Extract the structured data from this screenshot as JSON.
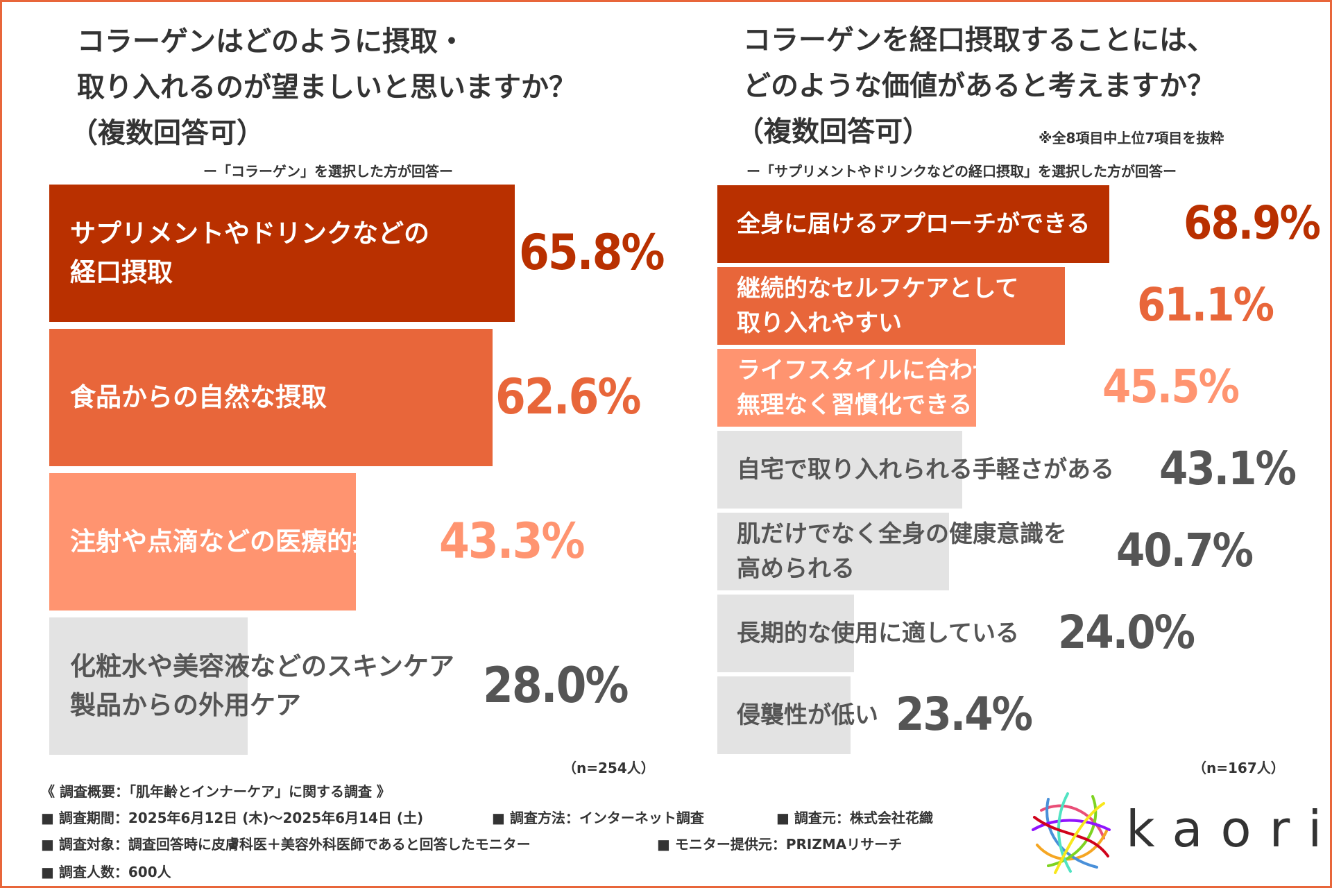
{
  "colors": {
    "dark": "#B93000",
    "mid": "#E8663A",
    "light": "#FF9470",
    "gray": "#E3E3E3",
    "gray_text": "#555555"
  },
  "left": {
    "title_lines": [
      "コラーゲンはどのように摂取・",
      "取り入れるのが望ましいと思いますか？",
      "（複数回答可）"
    ],
    "note": "ー「コラーゲン」を選択した方が回答ー",
    "n": "（n=254人）"
  },
  "right": {
    "title_lines": [
      "コラーゲンを経口摂取することには、",
      "どのような価値があると考えますか？",
      "（複数回答可）"
    ],
    "extract_note": "※全8項目中上位7項目を抜粋",
    "note": "ー「サプリメントやドリンクなどの経口摂取」を選択した方が回答ー",
    "n": "（n=167人）"
  },
  "chart_data": [
    {
      "type": "bar",
      "orientation": "horizontal",
      "title": "コラーゲンはどのように摂取・取り入れるのが望ましいと思いますか？（複数回答可）",
      "categories": [
        "サプリメントやドリンクなどの経口摂取",
        "食品からの自然な摂取",
        "注射や点滴などの医療的摂取",
        "化粧水や美容液などのスキンケア製品からの外用ケア"
      ],
      "label_lines": [
        [
          "サプリメントやドリンクなどの",
          "経口摂取"
        ],
        [
          "食品からの自然な摂取"
        ],
        [
          "注射や点滴などの医療的摂取"
        ],
        [
          "化粧水や美容液などのスキンケア",
          "製品からの外用ケア"
        ]
      ],
      "values": [
        65.8,
        62.6,
        43.3,
        28.0
      ],
      "value_labels": [
        "65.8%",
        "62.6%",
        "43.3%",
        "28.0%"
      ],
      "shades": [
        "dark",
        "mid",
        "light",
        "gray"
      ],
      "unit": "%",
      "xlim": [
        0,
        100
      ]
    },
    {
      "type": "bar",
      "orientation": "horizontal",
      "title": "コラーゲンを経口摂取することには、どのような価値があると考えますか？（複数回答可）",
      "categories": [
        "全身に届けるアプローチができる",
        "継続的なセルフケアとして取り入れやすい",
        "ライフスタイルに合わせて無理なく習慣化できる",
        "自宅で取り入れられる手軽さがある",
        "肌だけでなく全身の健康意識を高められる",
        "長期的な使用に適している",
        "侵襲性が低い"
      ],
      "label_lines": [
        [
          "全身に届けるアプローチができる"
        ],
        [
          "継続的なセルフケアとして",
          "取り入れやすい"
        ],
        [
          "ライフスタイルに合わせて",
          "無理なく習慣化できる"
        ],
        [
          "自宅で取り入れられる手軽さがある"
        ],
        [
          "肌だけでなく全身の健康意識を",
          "高められる"
        ],
        [
          "長期的な使用に適している"
        ],
        [
          "侵襲性が低い"
        ]
      ],
      "values": [
        68.9,
        61.1,
        45.5,
        43.1,
        40.7,
        24.0,
        23.4
      ],
      "value_labels": [
        "68.9%",
        "61.1%",
        "45.5%",
        "43.1%",
        "40.7%",
        "24.0%",
        "23.4%"
      ],
      "shades": [
        "dark",
        "mid",
        "light",
        "gray",
        "gray",
        "gray",
        "gray"
      ],
      "unit": "%",
      "xlim": [
        0,
        100
      ]
    }
  ],
  "footer": {
    "overview": "《 調査概要：「肌年齢とインナーケア」に関する調査 》",
    "period": "■ 調査期間：2025年6月12日 (木)〜2025年6月14日 (土)",
    "method": "■ 調査方法：インターネット調査",
    "source": "■ 調査元：株式会社花織",
    "target": "■ 調査対象：調査回答時に皮膚科医＋美容外科医師であると回答したモニター",
    "provider": "■ モニター提供元：PRIZMAリサーチ",
    "count": "■ 調査人数：600人"
  },
  "logo": {
    "text": "kaori"
  }
}
